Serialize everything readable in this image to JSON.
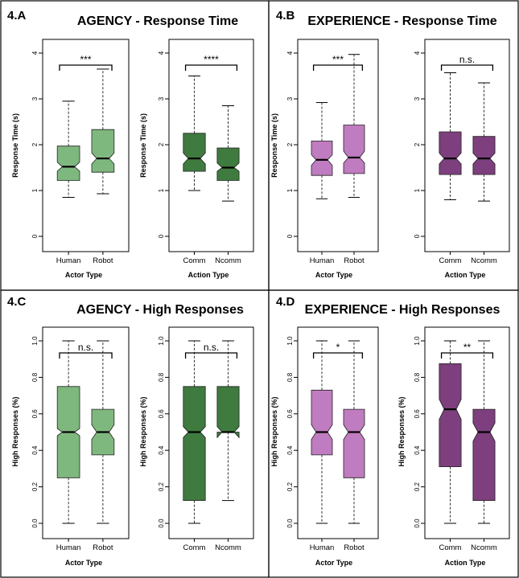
{
  "panels": [
    {
      "letter": "4.A",
      "title": "AGENCY - Response Time",
      "subplots": [
        {
          "xlabel": "Actor Type",
          "ylabel": "Response Time (s)"
        },
        {
          "xlabel": "Action Type",
          "ylabel": "Response Time (s)"
        }
      ]
    },
    {
      "letter": "4.B",
      "title": "EXPERIENCE - Response Time",
      "subplots": [
        {
          "xlabel": "Actor Type",
          "ylabel": "Response Time (s)"
        },
        {
          "xlabel": "Action Type",
          "ylabel": ""
        }
      ]
    },
    {
      "letter": "4.C",
      "title": "AGENCY - High Responses",
      "subplots": [
        {
          "xlabel": "Actor Type",
          "ylabel": "High Responses (%)"
        },
        {
          "xlabel": "",
          "ylabel": "High Responses (%)"
        }
      ]
    },
    {
      "letter": "4.D",
      "title": "EXPERIENCE - High Responses",
      "subplots": [
        {
          "xlabel": "Actor Type",
          "ylabel": "High Responses (%)"
        },
        {
          "xlabel": "Action Type",
          "ylabel": "High Responses (%)"
        }
      ]
    }
  ],
  "chart_data": [
    {
      "type": "boxplot",
      "panel": "4.A",
      "xlabel": "Actor Type",
      "ylabel": "Response Time (s)",
      "ylim": [
        0,
        4
      ],
      "yticks": [
        "0",
        "1",
        "2",
        "3",
        "4"
      ],
      "significance": "***",
      "color": "#7fb87f",
      "categories": [
        "Human",
        "Robot"
      ],
      "boxes": [
        {
          "min": 0.85,
          "q1": 1.22,
          "median": 1.52,
          "q3": 1.97,
          "max": 2.95,
          "notch": [
            1.42,
            1.62
          ]
        },
        {
          "min": 0.93,
          "q1": 1.4,
          "median": 1.7,
          "q3": 2.33,
          "max": 3.65,
          "notch": [
            1.58,
            1.82
          ]
        }
      ]
    },
    {
      "type": "boxplot",
      "panel": "4.A",
      "xlabel": "Action Type",
      "ylabel": "Response Time (s)",
      "ylim": [
        0,
        4
      ],
      "yticks": [
        "0",
        "1",
        "2",
        "3",
        "4"
      ],
      "significance": "****",
      "color": "#3f7a3f",
      "categories": [
        "Comm",
        "Ncomm"
      ],
      "boxes": [
        {
          "min": 1.0,
          "q1": 1.42,
          "median": 1.7,
          "q3": 2.25,
          "max": 3.5,
          "notch": [
            1.58,
            1.82
          ]
        },
        {
          "min": 0.77,
          "q1": 1.22,
          "median": 1.5,
          "q3": 1.93,
          "max": 2.85,
          "notch": [
            1.42,
            1.6
          ]
        }
      ]
    },
    {
      "type": "boxplot",
      "panel": "4.B",
      "xlabel": "Actor Type",
      "ylabel": "Response Time (s)",
      "ylim": [
        0,
        4
      ],
      "yticks": [
        "0",
        "1",
        "2",
        "3",
        "4"
      ],
      "significance": "***",
      "color": "#c07cc0",
      "categories": [
        "Human",
        "Robot"
      ],
      "boxes": [
        {
          "min": 0.82,
          "q1": 1.33,
          "median": 1.67,
          "q3": 2.08,
          "max": 2.92,
          "notch": [
            1.55,
            1.78
          ]
        },
        {
          "min": 0.85,
          "q1": 1.37,
          "median": 1.72,
          "q3": 2.43,
          "max": 3.97,
          "notch": [
            1.6,
            1.86
          ]
        }
      ]
    },
    {
      "type": "boxplot",
      "panel": "4.B",
      "xlabel": "Action Type",
      "ylabel": "",
      "ylim": [
        0,
        4
      ],
      "yticks": [
        "0",
        "1",
        "2",
        "3",
        "4"
      ],
      "significance": "n.s.",
      "color": "#7d3f7d",
      "categories": [
        "Comm",
        "Ncomm"
      ],
      "boxes": [
        {
          "min": 0.8,
          "q1": 1.35,
          "median": 1.7,
          "q3": 2.28,
          "max": 3.57,
          "notch": [
            1.58,
            1.82
          ]
        },
        {
          "min": 0.77,
          "q1": 1.35,
          "median": 1.7,
          "q3": 2.18,
          "max": 3.35,
          "notch": [
            1.58,
            1.82
          ]
        }
      ]
    },
    {
      "type": "boxplot",
      "panel": "4.C",
      "xlabel": "Actor Type",
      "ylabel": "High Responses (%)",
      "ylim": [
        0,
        1
      ],
      "yticks": [
        "0.0",
        "0.2",
        "0.4",
        "0.6",
        "0.8",
        "1.0"
      ],
      "significance": "n.s.",
      "color": "#7fb87f",
      "categories": [
        "Human",
        "Robot"
      ],
      "boxes": [
        {
          "min": 0.0,
          "q1": 0.25,
          "median": 0.5,
          "q3": 0.75,
          "max": 1.0,
          "notch": [
            0.48,
            0.52
          ]
        },
        {
          "min": 0.0,
          "q1": 0.375,
          "median": 0.5,
          "q3": 0.625,
          "max": 1.0,
          "notch": [
            0.46,
            0.54
          ]
        }
      ]
    },
    {
      "type": "boxplot",
      "panel": "4.C",
      "xlabel": "",
      "ylabel": "High Responses (%)",
      "ylim": [
        0,
        1
      ],
      "yticks": [
        "0.0",
        "0.2",
        "0.4",
        "0.6",
        "0.8",
        "1.0"
      ],
      "significance": "n.s.",
      "color": "#3f7a3f",
      "categories": [
        "Comm",
        "Ncomm"
      ],
      "boxes": [
        {
          "min": 0.0,
          "q1": 0.125,
          "median": 0.5,
          "q3": 0.75,
          "max": 1.0,
          "notch": [
            0.47,
            0.53
          ]
        },
        {
          "min": 0.125,
          "q1": 0.5,
          "median": 0.5,
          "q3": 0.75,
          "max": 1.0,
          "notch": [
            0.47,
            0.53
          ]
        }
      ]
    },
    {
      "type": "boxplot",
      "panel": "4.D",
      "xlabel": "Actor Type",
      "ylabel": "High Responses (%)",
      "ylim": [
        0,
        1
      ],
      "yticks": [
        "0.0",
        "0.2",
        "0.4",
        "0.6",
        "0.8",
        "1.0"
      ],
      "significance": "*",
      "color": "#c07cc0",
      "categories": [
        "Human",
        "Robot"
      ],
      "boxes": [
        {
          "min": 0.0,
          "q1": 0.375,
          "median": 0.5,
          "q3": 0.73,
          "max": 1.0,
          "notch": [
            0.46,
            0.54
          ]
        },
        {
          "min": 0.0,
          "q1": 0.25,
          "median": 0.5,
          "q3": 0.625,
          "max": 1.0,
          "notch": [
            0.46,
            0.54
          ]
        }
      ]
    },
    {
      "type": "boxplot",
      "panel": "4.D",
      "xlabel": "Action Type",
      "ylabel": "High Responses (%)",
      "ylim": [
        0,
        1
      ],
      "yticks": [
        "0.0",
        "0.2",
        "0.4",
        "0.6",
        "0.8",
        "1.0"
      ],
      "significance": "**",
      "color": "#7d3f7d",
      "categories": [
        "Comm",
        "Ncomm"
      ],
      "boxes": [
        {
          "min": 0.0,
          "q1": 0.31,
          "median": 0.625,
          "q3": 0.875,
          "max": 1.0,
          "notch": [
            0.57,
            0.68
          ]
        },
        {
          "min": 0.0,
          "q1": 0.125,
          "median": 0.5,
          "q3": 0.625,
          "max": 1.0,
          "notch": [
            0.45,
            0.55
          ]
        }
      ]
    }
  ]
}
